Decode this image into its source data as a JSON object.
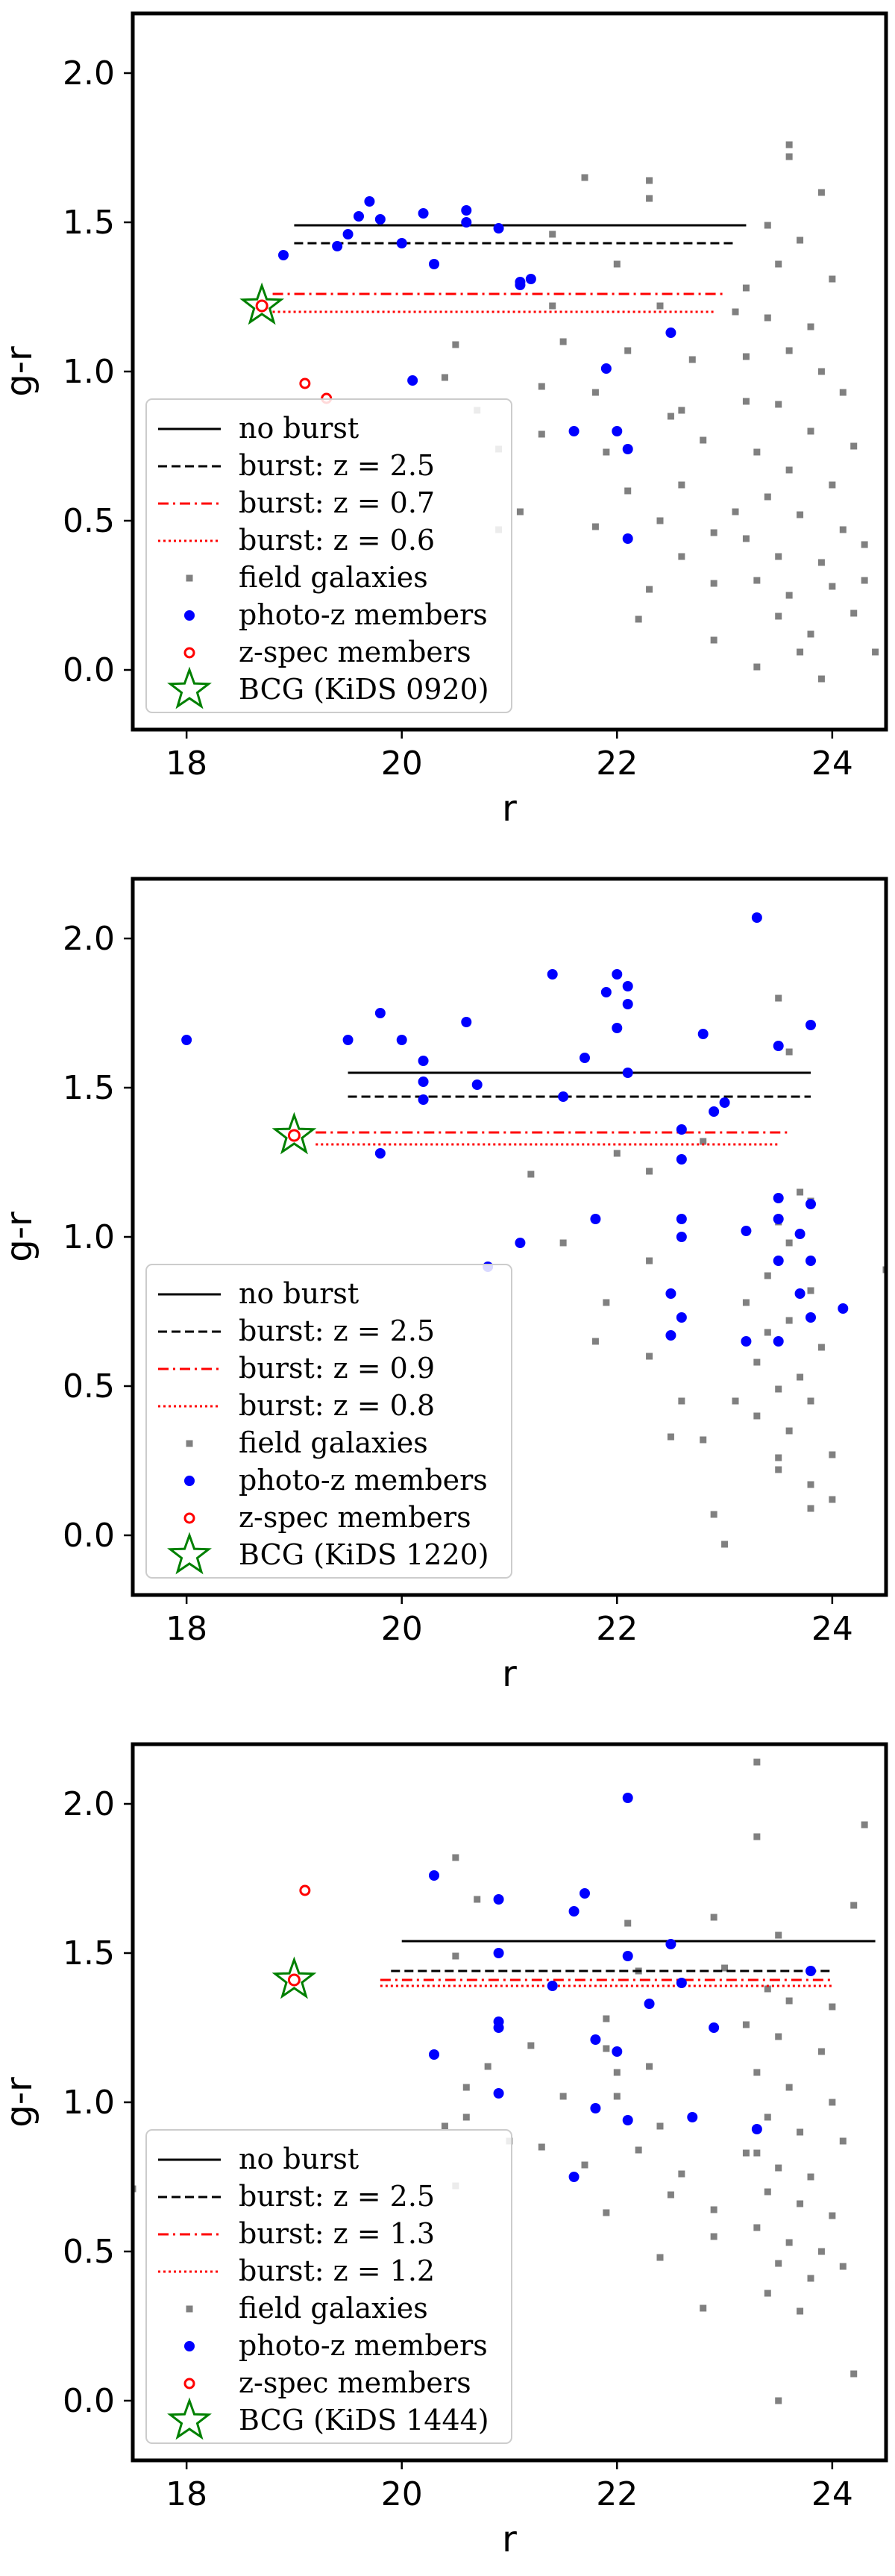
{
  "chart_data": [
    {
      "type": "scatter",
      "xlabel": "r",
      "ylabel": "g-r",
      "xlim": [
        17.5,
        24.5
      ],
      "ylim": [
        -0.2,
        2.2
      ],
      "xticks": [
        "18",
        "20",
        "22",
        "24"
      ],
      "yticks": [
        "0.0",
        "0.5",
        "1.0",
        "1.5",
        "2.0"
      ],
      "legend_position": "lower-left",
      "legend": [
        "no burst",
        "burst: z = 2.5",
        "burst: z = 0.7",
        "burst: z = 0.6",
        "field galaxies",
        "photo-z members",
        "z-spec members",
        "BCG (KiDS 0920)"
      ],
      "lines": [
        {
          "name": "no burst",
          "x": [
            19.0,
            23.2
          ],
          "y": [
            1.49,
            1.49
          ],
          "style": "solid",
          "color": "#000000"
        },
        {
          "name": "burst: z = 2.5",
          "x": [
            19.0,
            23.1
          ],
          "y": [
            1.43,
            1.43
          ],
          "style": "dashed",
          "color": "#000000"
        },
        {
          "name": "burst: z = 0.7",
          "x": [
            18.8,
            23.0
          ],
          "y": [
            1.26,
            1.26
          ],
          "style": "dashdot",
          "color": "#ff0000"
        },
        {
          "name": "burst: z = 0.6",
          "x": [
            18.8,
            22.9
          ],
          "y": [
            1.2,
            1.2
          ],
          "style": "dotted",
          "color": "#ff0000"
        }
      ],
      "field_galaxies": [
        [
          21.7,
          1.65
        ],
        [
          22.3,
          1.64
        ],
        [
          22.3,
          1.58
        ],
        [
          21.4,
          1.46
        ],
        [
          22.0,
          1.36
        ],
        [
          21.4,
          1.22
        ],
        [
          21.5,
          1.1
        ],
        [
          22.1,
          1.07
        ],
        [
          21.3,
          0.95
        ],
        [
          22.5,
          0.85
        ],
        [
          21.8,
          0.93
        ],
        [
          21.3,
          0.79
        ],
        [
          22.6,
          0.87
        ],
        [
          22.8,
          0.77
        ],
        [
          22.1,
          0.6
        ],
        [
          21.1,
          0.53
        ],
        [
          21.8,
          0.48
        ],
        [
          22.6,
          0.38
        ],
        [
          22.3,
          0.27
        ],
        [
          22.2,
          0.17
        ],
        [
          22.9,
          0.1
        ],
        [
          23.3,
          0.01
        ],
        [
          20.9,
          0.74
        ],
        [
          20.7,
          0.87
        ],
        [
          20.4,
          0.98
        ],
        [
          20.5,
          1.09
        ],
        [
          20.0,
          0.7
        ],
        [
          23.6,
          1.76
        ],
        [
          23.6,
          1.72
        ],
        [
          23.9,
          1.6
        ],
        [
          23.4,
          1.49
        ],
        [
          23.7,
          1.44
        ],
        [
          23.5,
          1.36
        ],
        [
          24.0,
          1.31
        ],
        [
          23.2,
          1.28
        ],
        [
          23.4,
          1.18
        ],
        [
          23.8,
          1.15
        ],
        [
          23.2,
          1.05
        ],
        [
          23.6,
          1.07
        ],
        [
          23.9,
          1.0
        ],
        [
          24.1,
          0.93
        ],
        [
          23.5,
          0.89
        ],
        [
          23.8,
          0.8
        ],
        [
          24.2,
          0.75
        ],
        [
          23.3,
          0.73
        ],
        [
          23.6,
          0.67
        ],
        [
          24.0,
          0.62
        ],
        [
          23.4,
          0.58
        ],
        [
          23.7,
          0.52
        ],
        [
          24.1,
          0.47
        ],
        [
          23.2,
          0.44
        ],
        [
          23.5,
          0.38
        ],
        [
          23.9,
          0.36
        ],
        [
          24.3,
          0.42
        ],
        [
          23.3,
          0.3
        ],
        [
          23.6,
          0.25
        ],
        [
          24.0,
          0.28
        ],
        [
          23.5,
          0.18
        ],
        [
          23.8,
          0.12
        ],
        [
          24.2,
          0.19
        ],
        [
          23.7,
          0.06
        ],
        [
          24.4,
          0.06
        ],
        [
          23.9,
          -0.03
        ],
        [
          22.9,
          0.29
        ],
        [
          23.1,
          0.53
        ],
        [
          22.6,
          0.62
        ],
        [
          22.9,
          0.46
        ],
        [
          23.2,
          0.9
        ],
        [
          22.7,
          1.04
        ],
        [
          23.1,
          1.2
        ],
        [
          22.4,
          1.22
        ],
        [
          24.3,
          0.3
        ],
        [
          21.9,
          0.73
        ],
        [
          22.4,
          0.5
        ],
        [
          20.9,
          0.47
        ]
      ],
      "photo_z_members": [
        [
          18.9,
          1.39
        ],
        [
          19.4,
          1.42
        ],
        [
          19.6,
          1.52
        ],
        [
          19.5,
          1.46
        ],
        [
          19.7,
          1.57
        ],
        [
          19.8,
          1.51
        ],
        [
          20.0,
          1.43
        ],
        [
          20.3,
          1.36
        ],
        [
          20.6,
          1.54
        ],
        [
          20.6,
          1.5
        ],
        [
          20.9,
          1.48
        ],
        [
          21.1,
          1.3
        ],
        [
          21.2,
          1.31
        ],
        [
          21.1,
          1.29
        ],
        [
          20.2,
          1.53
        ],
        [
          21.9,
          1.01
        ],
        [
          20.1,
          0.97
        ],
        [
          22.5,
          1.13
        ],
        [
          22.0,
          0.8
        ],
        [
          22.1,
          0.74
        ],
        [
          21.6,
          0.8
        ],
        [
          22.1,
          0.44
        ]
      ],
      "z_spec_members": [
        [
          19.1,
          0.96
        ],
        [
          19.3,
          0.91
        ]
      ],
      "bcg": [
        18.7,
        1.22
      ]
    },
    {
      "type": "scatter",
      "xlabel": "r",
      "ylabel": "g-r",
      "xlim": [
        17.5,
        24.5
      ],
      "ylim": [
        -0.2,
        2.2
      ],
      "xticks": [
        "18",
        "20",
        "22",
        "24"
      ],
      "yticks": [
        "0.0",
        "0.5",
        "1.0",
        "1.5",
        "2.0"
      ],
      "legend_position": "lower-left",
      "legend": [
        "no burst",
        "burst: z = 2.5",
        "burst: z = 0.9",
        "burst: z = 0.8",
        "field galaxies",
        "photo-z members",
        "z-spec members",
        "BCG (KiDS 1220)"
      ],
      "lines": [
        {
          "name": "no burst",
          "x": [
            19.5,
            23.8
          ],
          "y": [
            1.55,
            1.55
          ],
          "style": "solid",
          "color": "#000000"
        },
        {
          "name": "burst: z = 2.5",
          "x": [
            19.5,
            23.8
          ],
          "y": [
            1.47,
            1.47
          ],
          "style": "dashed",
          "color": "#000000"
        },
        {
          "name": "burst: z = 0.9",
          "x": [
            19.2,
            23.6
          ],
          "y": [
            1.35,
            1.35
          ],
          "style": "dashdot",
          "color": "#ff0000"
        },
        {
          "name": "burst: z = 0.8",
          "x": [
            19.2,
            23.5
          ],
          "y": [
            1.31,
            1.31
          ],
          "style": "dotted",
          "color": "#ff0000"
        }
      ],
      "field_galaxies": [
        [
          23.5,
          1.8
        ],
        [
          23.6,
          1.62
        ],
        [
          24.5,
          0.89
        ],
        [
          23.7,
          1.15
        ],
        [
          23.5,
          1.05
        ],
        [
          23.6,
          0.98
        ],
        [
          23.4,
          0.87
        ],
        [
          23.8,
          0.82
        ],
        [
          23.2,
          0.78
        ],
        [
          23.6,
          0.72
        ],
        [
          23.4,
          0.68
        ],
        [
          23.9,
          0.63
        ],
        [
          23.3,
          0.58
        ],
        [
          23.7,
          0.53
        ],
        [
          23.5,
          0.49
        ],
        [
          23.8,
          0.45
        ],
        [
          23.3,
          0.4
        ],
        [
          23.6,
          0.35
        ],
        [
          24.0,
          0.27
        ],
        [
          23.5,
          0.22
        ],
        [
          23.8,
          0.17
        ],
        [
          24.0,
          0.12
        ],
        [
          23.5,
          0.26
        ],
        [
          23.8,
          0.09
        ],
        [
          22.9,
          0.07
        ],
        [
          23.0,
          -0.03
        ],
        [
          22.5,
          0.33
        ],
        [
          22.8,
          0.32
        ],
        [
          23.1,
          0.45
        ],
        [
          22.6,
          0.45
        ],
        [
          22.3,
          0.6
        ],
        [
          21.8,
          0.65
        ],
        [
          21.9,
          0.78
        ],
        [
          22.3,
          0.92
        ],
        [
          21.2,
          1.21
        ],
        [
          21.5,
          0.98
        ],
        [
          22.8,
          1.32
        ],
        [
          22.0,
          1.28
        ],
        [
          23.8,
          1.12
        ],
        [
          22.3,
          1.22
        ]
      ],
      "photo_z_members": [
        [
          18.0,
          1.66
        ],
        [
          19.5,
          1.66
        ],
        [
          19.8,
          1.75
        ],
        [
          20.0,
          1.66
        ],
        [
          20.2,
          1.59
        ],
        [
          20.2,
          1.52
        ],
        [
          20.2,
          1.46
        ],
        [
          20.6,
          1.72
        ],
        [
          20.7,
          1.51
        ],
        [
          19.8,
          1.28
        ],
        [
          21.4,
          1.88
        ],
        [
          21.7,
          1.6
        ],
        [
          21.5,
          1.47
        ],
        [
          21.9,
          1.82
        ],
        [
          22.0,
          1.88
        ],
        [
          22.1,
          1.84
        ],
        [
          22.1,
          1.78
        ],
        [
          22.0,
          1.7
        ],
        [
          22.1,
          1.55
        ],
        [
          22.8,
          1.68
        ],
        [
          23.3,
          2.07
        ],
        [
          23.5,
          1.64
        ],
        [
          23.8,
          1.71
        ],
        [
          23.0,
          1.45
        ],
        [
          22.9,
          1.42
        ],
        [
          22.6,
          1.36
        ],
        [
          22.6,
          1.26
        ],
        [
          23.5,
          1.13
        ],
        [
          23.8,
          1.11
        ],
        [
          23.5,
          1.06
        ],
        [
          23.7,
          1.01
        ],
        [
          23.2,
          1.02
        ],
        [
          23.5,
          0.92
        ],
        [
          23.8,
          0.92
        ],
        [
          23.7,
          0.81
        ],
        [
          23.8,
          0.73
        ],
        [
          23.5,
          0.65
        ],
        [
          24.1,
          0.76
        ],
        [
          21.1,
          0.98
        ],
        [
          20.8,
          0.9
        ],
        [
          21.8,
          1.06
        ],
        [
          22.6,
          1.06
        ],
        [
          22.6,
          1.0
        ],
        [
          22.5,
          0.81
        ],
        [
          22.6,
          0.73
        ],
        [
          22.5,
          0.67
        ],
        [
          23.2,
          0.65
        ]
      ],
      "z_spec_members": [],
      "bcg": [
        19.0,
        1.34
      ]
    },
    {
      "type": "scatter",
      "xlabel": "r",
      "ylabel": "g-r",
      "xlim": [
        17.5,
        24.5
      ],
      "ylim": [
        -0.2,
        2.2
      ],
      "xticks": [
        "18",
        "20",
        "22",
        "24"
      ],
      "yticks": [
        "0.0",
        "0.5",
        "1.0",
        "1.5",
        "2.0"
      ],
      "legend_position": "lower-left",
      "legend": [
        "no burst",
        "burst: z = 2.5",
        "burst: z = 1.3",
        "burst: z = 1.2",
        "field galaxies",
        "photo-z members",
        "z-spec members",
        "BCG (KiDS 1444)"
      ],
      "lines": [
        {
          "name": "no burst",
          "x": [
            20.0,
            24.4
          ],
          "y": [
            1.54,
            1.54
          ],
          "style": "solid",
          "color": "#000000"
        },
        {
          "name": "burst: z = 2.5",
          "x": [
            19.9,
            24.0
          ],
          "y": [
            1.44,
            1.44
          ],
          "style": "dashed",
          "color": "#000000"
        },
        {
          "name": "burst: z = 1.3",
          "x": [
            19.8,
            24.0
          ],
          "y": [
            1.41,
            1.41
          ],
          "style": "dashdot",
          "color": "#ff0000"
        },
        {
          "name": "burst: z = 1.2",
          "x": [
            19.8,
            24.0
          ],
          "y": [
            1.39,
            1.39
          ],
          "style": "dotted",
          "color": "#ff0000"
        }
      ],
      "field_galaxies": [
        [
          23.3,
          2.14
        ],
        [
          24.3,
          1.93
        ],
        [
          23.3,
          1.89
        ],
        [
          24.2,
          1.66
        ],
        [
          23.5,
          1.56
        ],
        [
          20.5,
          1.82
        ],
        [
          20.7,
          1.68
        ],
        [
          22.1,
          1.6
        ],
        [
          22.2,
          1.44
        ],
        [
          23.0,
          1.45
        ],
        [
          23.4,
          1.38
        ],
        [
          23.6,
          1.34
        ],
        [
          24.0,
          1.32
        ],
        [
          23.2,
          1.26
        ],
        [
          23.5,
          1.22
        ],
        [
          23.9,
          1.17
        ],
        [
          23.3,
          1.1
        ],
        [
          23.6,
          1.05
        ],
        [
          24.0,
          1.0
        ],
        [
          23.4,
          0.95
        ],
        [
          23.7,
          0.9
        ],
        [
          24.1,
          0.87
        ],
        [
          23.3,
          0.83
        ],
        [
          23.5,
          0.78
        ],
        [
          23.8,
          0.75
        ],
        [
          23.4,
          0.7
        ],
        [
          23.7,
          0.66
        ],
        [
          24.0,
          0.62
        ],
        [
          23.3,
          0.58
        ],
        [
          23.6,
          0.53
        ],
        [
          23.9,
          0.5
        ],
        [
          23.5,
          0.46
        ],
        [
          23.8,
          0.41
        ],
        [
          24.1,
          0.45
        ],
        [
          23.4,
          0.36
        ],
        [
          23.7,
          0.3
        ],
        [
          24.2,
          0.09
        ],
        [
          23.5,
          0.0
        ],
        [
          22.8,
          0.31
        ],
        [
          22.9,
          0.55
        ],
        [
          22.5,
          0.69
        ],
        [
          22.6,
          0.76
        ],
        [
          22.2,
          0.84
        ],
        [
          22.4,
          0.92
        ],
        [
          22.0,
          1.02
        ],
        [
          22.3,
          1.12
        ],
        [
          21.9,
          1.18
        ],
        [
          21.2,
          1.19
        ],
        [
          21.5,
          1.02
        ],
        [
          21.0,
          0.87
        ],
        [
          20.8,
          1.12
        ],
        [
          20.4,
          0.92
        ],
        [
          20.6,
          0.95
        ],
        [
          21.3,
          0.85
        ],
        [
          21.7,
          0.79
        ],
        [
          21.9,
          0.63
        ],
        [
          22.9,
          0.64
        ],
        [
          22.4,
          0.48
        ],
        [
          23.2,
          0.83
        ],
        [
          20.5,
          0.72
        ],
        [
          20.6,
          1.05
        ],
        [
          20.5,
          1.49
        ],
        [
          17.5,
          0.71
        ],
        [
          22.9,
          1.62
        ],
        [
          21.9,
          1.28
        ],
        [
          22.0,
          1.1
        ]
      ],
      "photo_z_members": [
        [
          22.1,
          2.02
        ],
        [
          20.3,
          1.76
        ],
        [
          20.9,
          1.68
        ],
        [
          21.6,
          1.64
        ],
        [
          21.7,
          1.7
        ],
        [
          20.9,
          1.5
        ],
        [
          22.1,
          1.49
        ],
        [
          22.5,
          1.53
        ],
        [
          21.4,
          1.39
        ],
        [
          20.3,
          1.16
        ],
        [
          20.9,
          1.27
        ],
        [
          20.9,
          1.25
        ],
        [
          21.8,
          1.21
        ],
        [
          22.0,
          1.17
        ],
        [
          22.3,
          1.33
        ],
        [
          22.6,
          1.4
        ],
        [
          22.9,
          1.25
        ],
        [
          20.9,
          1.03
        ],
        [
          21.8,
          0.98
        ],
        [
          22.1,
          0.94
        ],
        [
          22.7,
          0.95
        ],
        [
          23.3,
          0.91
        ],
        [
          23.8,
          1.44
        ],
        [
          21.6,
          0.75
        ]
      ],
      "z_spec_members": [
        [
          19.1,
          1.71
        ]
      ],
      "bcg": [
        19.0,
        1.41
      ]
    }
  ]
}
